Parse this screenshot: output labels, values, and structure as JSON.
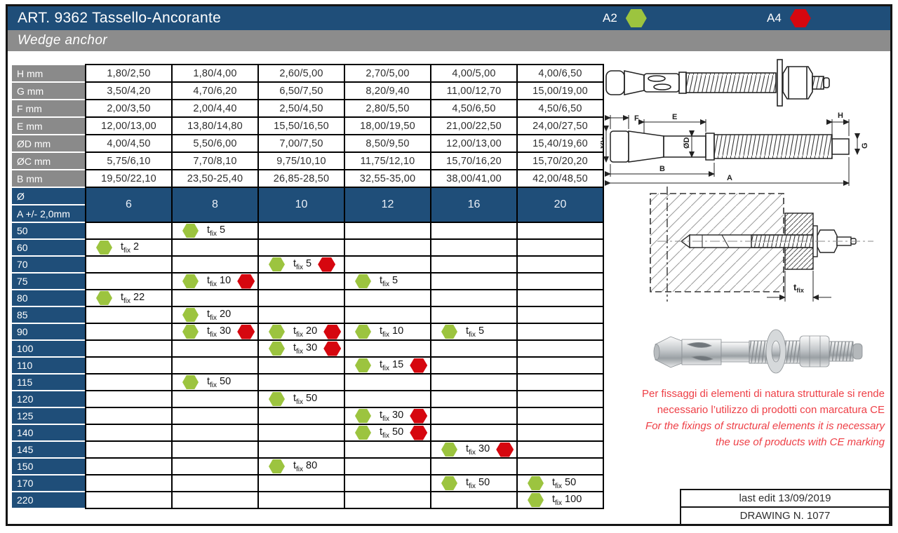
{
  "header": {
    "title": "ART. 9362 Tassello-Ancorante",
    "subtitle": "Wedge anchor",
    "a2_label": "A2",
    "a4_label": "A4"
  },
  "colors": {
    "header_blue": "#1F4E79",
    "label_gray": "#8A8A8A",
    "subtitle_gray": "#8C8C8C",
    "marker_green": "#9CC43F",
    "marker_red": "#D6070F",
    "note_red": "#EE3F46"
  },
  "spec_table": {
    "rows": [
      {
        "label": "H mm",
        "values": [
          "1,80/2,50",
          "1,80/4,00",
          "2,60/5,00",
          "2,70/5,00",
          "4,00/5,00",
          "4,00/6,50"
        ]
      },
      {
        "label": "G mm",
        "values": [
          "3,50/4,20",
          "4,70/6,20",
          "6,50/7,50",
          "8,20/9,40",
          "11,00/12,70",
          "15,00/19,00"
        ]
      },
      {
        "label": "F mm",
        "values": [
          "2,00/3,50",
          "2,00/4,40",
          "2,50/4,50",
          "2,80/5,50",
          "4,50/6,50",
          "4,50/6,50"
        ]
      },
      {
        "label": "E mm",
        "values": [
          "12,00/13,00",
          "13,80/14,80",
          "15,50/16,50",
          "18,00/19,50",
          "21,00/22,50",
          "24,00/27,50"
        ]
      },
      {
        "label": "ØD mm",
        "values": [
          "4,00/4,50",
          "5,50/6,00",
          "7,00/7,50",
          "8,50/9,50",
          "12,00/13,00",
          "15,40/19,60"
        ]
      },
      {
        "label": "ØC mm",
        "values": [
          "5,75/6,10",
          "7,70/8,10",
          "9,75/10,10",
          "11,75/12,10",
          "15,70/16,20",
          "15,70/20,20"
        ]
      },
      {
        "label": "B mm",
        "values": [
          "19,50/22,10",
          "23,50-25,40",
          "26,85-28,50",
          "32,55-35,00",
          "38,00/41,00",
          "42,00/48,50"
        ]
      }
    ]
  },
  "size_header": {
    "diameter_symbol": "Ø",
    "length_label": "A +/- 2,0mm",
    "diameters": [
      "6",
      "8",
      "10",
      "12",
      "16",
      "20"
    ]
  },
  "tfix_prefix": "t",
  "tfix_sub": "fix",
  "anchor_rows": [
    {
      "length": "50",
      "cells": [
        null,
        {
          "tfix": "5",
          "red": false
        },
        null,
        null,
        null,
        null
      ]
    },
    {
      "length": "60",
      "cells": [
        {
          "tfix": "2",
          "red": false
        },
        null,
        null,
        null,
        null,
        null
      ]
    },
    {
      "length": "70",
      "cells": [
        null,
        null,
        {
          "tfix": "5",
          "red": true
        },
        null,
        null,
        null
      ]
    },
    {
      "length": "75",
      "cells": [
        null,
        {
          "tfix": "10",
          "red": true
        },
        null,
        {
          "tfix": "5",
          "red": false
        },
        null,
        null
      ]
    },
    {
      "length": "80",
      "cells": [
        {
          "tfix": "22",
          "red": false
        },
        null,
        null,
        null,
        null,
        null
      ]
    },
    {
      "length": "85",
      "cells": [
        null,
        {
          "tfix": "20",
          "red": false
        },
        null,
        null,
        null,
        null
      ]
    },
    {
      "length": "90",
      "cells": [
        null,
        {
          "tfix": "30",
          "red": true
        },
        {
          "tfix": "20",
          "red": true
        },
        {
          "tfix": "10",
          "red": false
        },
        {
          "tfix": "5",
          "red": false
        },
        null
      ]
    },
    {
      "length": "100",
      "cells": [
        null,
        null,
        {
          "tfix": "30",
          "red": true
        },
        null,
        null,
        null
      ]
    },
    {
      "length": "110",
      "cells": [
        null,
        null,
        null,
        {
          "tfix": "15",
          "red": true
        },
        null,
        null
      ]
    },
    {
      "length": "115",
      "cells": [
        null,
        {
          "tfix": "50",
          "red": false
        },
        null,
        null,
        null,
        null
      ]
    },
    {
      "length": "120",
      "cells": [
        null,
        null,
        {
          "tfix": "50",
          "red": false
        },
        null,
        null,
        null
      ]
    },
    {
      "length": "125",
      "cells": [
        null,
        null,
        null,
        {
          "tfix": "30",
          "red": true
        },
        null,
        null
      ]
    },
    {
      "length": "140",
      "cells": [
        null,
        null,
        null,
        {
          "tfix": "50",
          "red": true
        },
        null,
        null
      ]
    },
    {
      "length": "145",
      "cells": [
        null,
        null,
        null,
        null,
        {
          "tfix": "30",
          "red": true
        },
        null
      ]
    },
    {
      "length": "150",
      "cells": [
        null,
        null,
        {
          "tfix": "80",
          "red": false
        },
        null,
        null,
        null
      ]
    },
    {
      "length": "170",
      "cells": [
        null,
        null,
        null,
        null,
        {
          "tfix": "50",
          "red": false
        },
        {
          "tfix": "50",
          "red": false
        }
      ]
    },
    {
      "length": "220",
      "cells": [
        null,
        null,
        null,
        null,
        null,
        {
          "tfix": "100",
          "red": false
        }
      ]
    }
  ],
  "drawings": {
    "labels": {
      "F": "F",
      "E": "E",
      "H": "H",
      "OC": "ØC",
      "OD": "ØD",
      "G": "G",
      "B": "B",
      "A": "A"
    }
  },
  "note": {
    "line1": "Per fissaggi di elementi di natura strutturale si rende",
    "line2": "necessario l’utilizzo di prodotti con marcatura CE",
    "line3": "For the fixings of structural elements it is necessary",
    "line4": "the use of products with CE marking"
  },
  "footer": {
    "last_edit": "last edit 13/09/2019",
    "drawing_no": "DRAWING N. 1077"
  }
}
